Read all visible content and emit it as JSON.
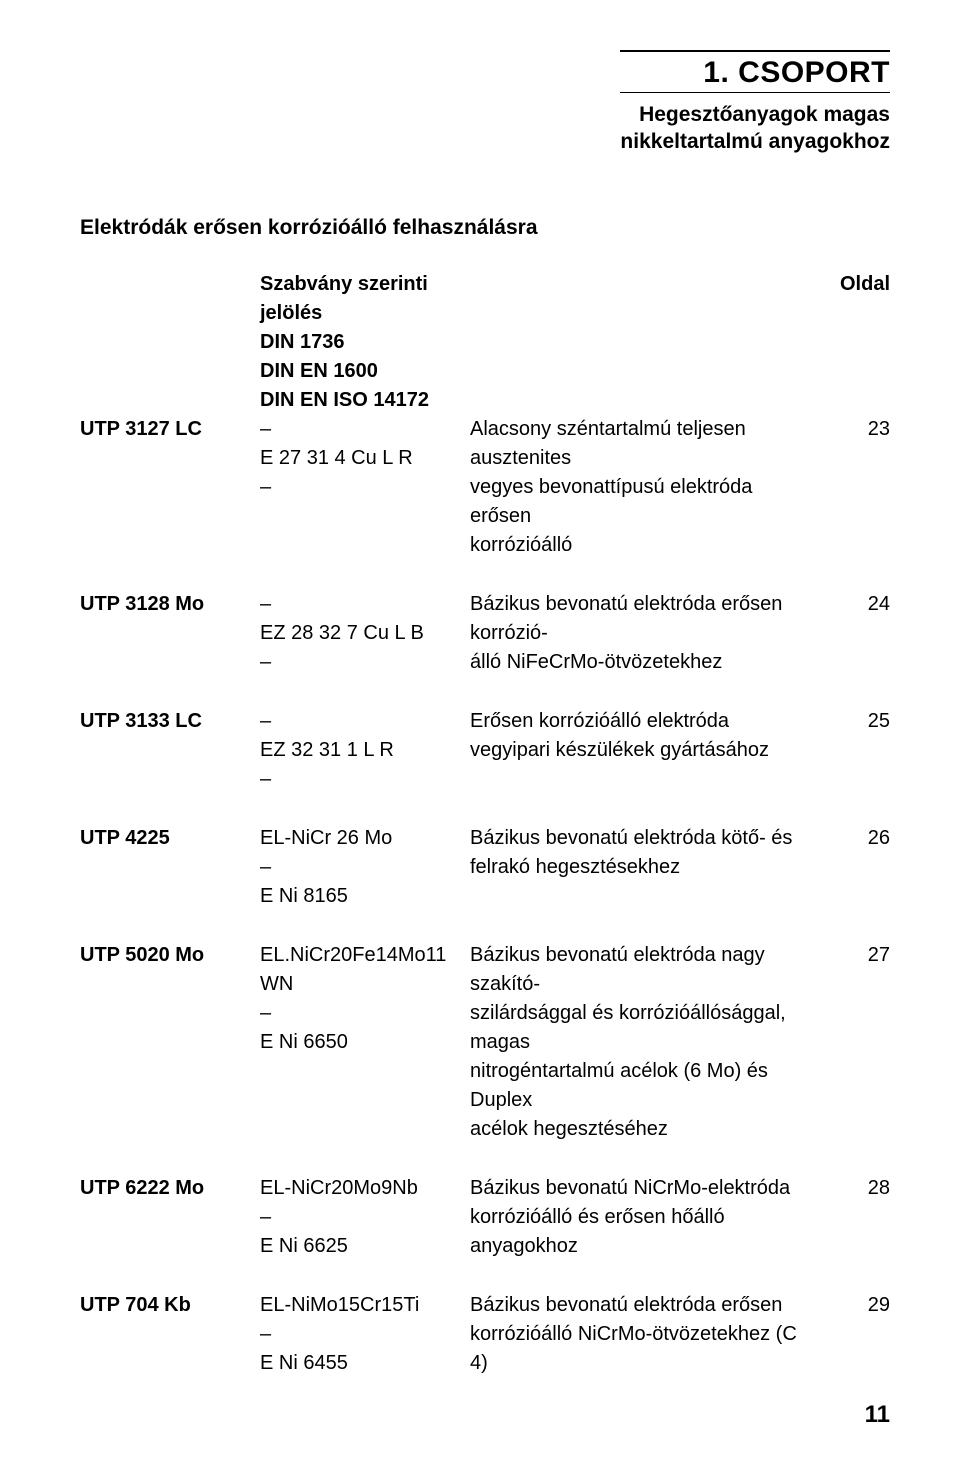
{
  "header": {
    "group_title": "1. CSOPORT",
    "subtitle_line1": "Hegesztőanyagok magas",
    "subtitle_line2": "nikkeltartalmú anyagokhoz"
  },
  "section_title": "Elektródák erősen korrózióálló felhasználásra",
  "col_headers": {
    "std_label": "Szabvány szerinti jelölés",
    "std_din1": "DIN  1736",
    "std_din2": "DIN  EN 1600",
    "std_din3": "DIN  EN ISO 14172",
    "page_label": "Oldal"
  },
  "rows": [
    {
      "name": "UTP 3127 LC",
      "std": [
        "–",
        "E 27 31 4 Cu L R",
        "–"
      ],
      "desc": [
        "Alacsony széntartalmú teljesen ausztenites",
        "vegyes bevonattípusú elektróda erősen",
        "korrózióálló"
      ],
      "page": "23"
    },
    {
      "name": "UTP 3128 Mo",
      "std": [
        "–",
        "EZ 28 32 7 Cu L B",
        "–"
      ],
      "desc": [
        "Bázikus bevonatú elektróda erősen korrózió-",
        "álló NiFeCrMo-ötvözetekhez"
      ],
      "page": "24"
    },
    {
      "name": "UTP 3133 LC",
      "std": [
        "–",
        "EZ 32 31 1 L R",
        "–"
      ],
      "desc": [
        "Erősen korrózióálló elektróda",
        "vegyipari készülékek gyártásához"
      ],
      "page": "25"
    },
    {
      "name": "UTP 4225",
      "std": [
        "EL-NiCr 26 Mo",
        "–",
        "E Ni 8165"
      ],
      "desc": [
        "Bázikus bevonatú elektróda kötő- és",
        "felrakó hegesztésekhez"
      ],
      "page": "26"
    },
    {
      "name": "UTP 5020 Mo",
      "std": [
        "EL.NiCr20Fe14Mo11",
        "WN",
        "–",
        "E Ni 6650"
      ],
      "desc": [
        "Bázikus bevonatú elektróda nagy szakító-",
        "szilárdsággal és korrózióállósággal, magas",
        "nitrogéntartalmú acélok (6 Mo) és Duplex",
        "acélok hegesztéséhez"
      ],
      "page": "27"
    },
    {
      "name": "UTP 6222 Mo",
      "std": [
        "EL-NiCr20Mo9Nb",
        "–",
        "E Ni 6625"
      ],
      "desc": [
        "Bázikus bevonatú NiCrMo-elektróda",
        "korrózióálló és erősen hőálló anyagokhoz"
      ],
      "page": "28"
    },
    {
      "name": "UTP 704 Kb",
      "std": [
        "EL-NiMo15Cr15Ti",
        "–",
        "E Ni 6455"
      ],
      "desc": [
        "Bázikus bevonatú elektróda erősen",
        "korrózióálló NiCrMo-ötvözetekhez (C 4)"
      ],
      "page": "29"
    }
  ],
  "page_number": "11"
}
